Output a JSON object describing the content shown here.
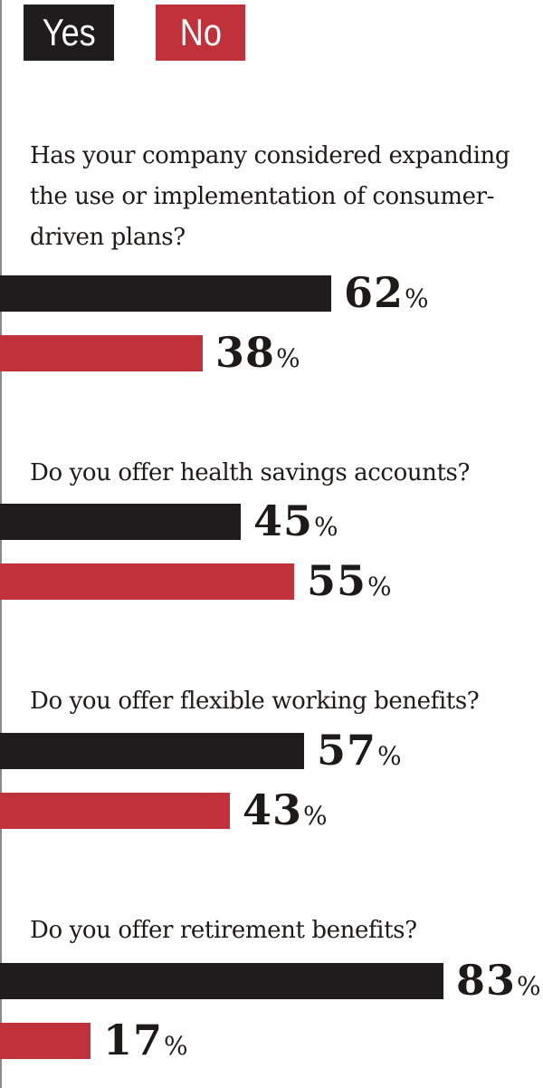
{
  "colors": {
    "yes": "#1e1c1d",
    "no": "#c1313a"
  },
  "legend": {
    "yes_label": "Yes",
    "no_label": "No"
  },
  "chart_data": {
    "type": "bar",
    "orientation": "horizontal",
    "value_suffix": "%",
    "xlim": [
      0,
      100
    ],
    "legend_position": "top-left",
    "grid": false,
    "series_names": [
      "Yes",
      "No"
    ],
    "questions": [
      {
        "text": "Has your company considered expanding the use or implementation of consumer-driven plans?",
        "yes": 62,
        "no": 38
      },
      {
        "text": "Do you offer health savings accounts?",
        "yes": 45,
        "no": 55
      },
      {
        "text": "Do you offer flexible working benefits?",
        "yes": 57,
        "no": 43
      },
      {
        "text": "Do you offer retirement benefits?",
        "yes": 83,
        "no": 17
      }
    ]
  }
}
